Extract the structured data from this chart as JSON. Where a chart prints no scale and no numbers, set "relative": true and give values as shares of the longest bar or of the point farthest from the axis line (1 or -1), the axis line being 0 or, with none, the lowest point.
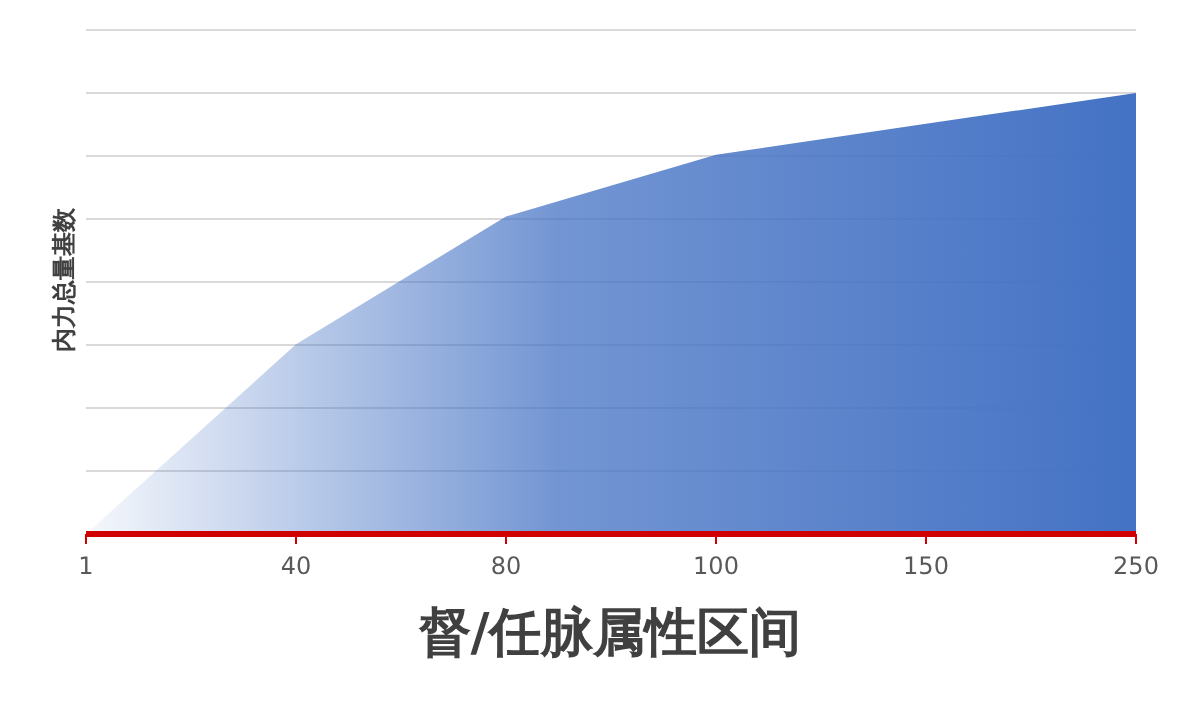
{
  "chart_data": {
    "type": "area",
    "relative": true,
    "categories": [
      "1",
      "40",
      "80",
      "100",
      "150",
      "250"
    ],
    "series": [
      {
        "color": "#4472c4",
        "values": [
          0,
          0.43,
          0.72,
          0.86,
          0.93,
          1
        ]
      }
    ],
    "xlabel": "督/任脉属性区间",
    "ylabel": "内力总量基数",
    "grid": "y"
  }
}
